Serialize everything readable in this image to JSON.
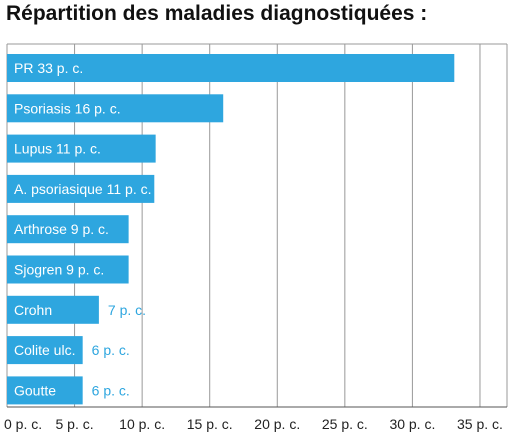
{
  "chart_data": {
    "type": "bar",
    "orientation": "horizontal",
    "title": "Répartition des maladies diagnostiquées :",
    "xlabel": "",
    "ylabel": "",
    "xlim": [
      0,
      37
    ],
    "grid": true,
    "bar_color": "#2ea6df",
    "gridline_color": "#999999",
    "ticks": [
      {
        "value": 0,
        "label": "0 p. c."
      },
      {
        "value": 5,
        "label": "5 p. c."
      },
      {
        "value": 10,
        "label": "10 p. c."
      },
      {
        "value": 15,
        "label": "15 p. c."
      },
      {
        "value": 20,
        "label": "20 p. c."
      },
      {
        "value": 25,
        "label": "25 p. c."
      },
      {
        "value": 30,
        "label": "30 p. c."
      },
      {
        "value": 35,
        "label": "35 p. c."
      }
    ],
    "bars": [
      {
        "category": "PR",
        "value": 33.1,
        "inside_label": "PR 33 p. c.",
        "outside_label": ""
      },
      {
        "category": "Psoriasis",
        "value": 16.0,
        "inside_label": "Psoriasis 16 p. c.",
        "outside_label": ""
      },
      {
        "category": "Lupus",
        "value": 11.0,
        "inside_label": "Lupus 11 p. c.",
        "outside_label": ""
      },
      {
        "category": "A. psoriasique",
        "value": 10.9,
        "inside_label": "A. psoriasique  11 p. c.",
        "outside_label": ""
      },
      {
        "category": "Arthrose",
        "value": 9.0,
        "inside_label": "Arthrose 9 p. c.",
        "outside_label": ""
      },
      {
        "category": "Sjogren",
        "value": 9.0,
        "inside_label": "Sjogren 9 p. c.",
        "outside_label": ""
      },
      {
        "category": "Crohn",
        "value": 6.8,
        "inside_label": "Crohn",
        "outside_label": "7 p. c."
      },
      {
        "category": "Colite ulc.",
        "value": 5.6,
        "inside_label": "Colite ulc.",
        "outside_label": "6 p. c."
      },
      {
        "category": "Goutte",
        "value": 5.6,
        "inside_label": "Goutte",
        "outside_label": "6 p. c."
      }
    ]
  }
}
